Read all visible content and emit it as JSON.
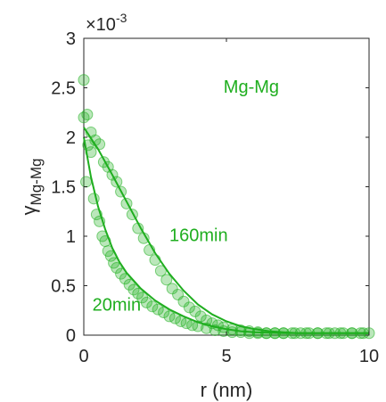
{
  "chart_data": {
    "type": "scatter",
    "title": "",
    "xlabel": "r (nm)",
    "ylabel_symbol": "γ",
    "ylabel_subscript": "Mg-Mg",
    "exponent_label": "×10",
    "exponent_power": "-3",
    "xlim": [
      0,
      10
    ],
    "ylim": [
      0,
      3
    ],
    "x_ticks": [
      0,
      5,
      10
    ],
    "x_tick_labels": [
      "0",
      "5",
      "10"
    ],
    "y_ticks": [
      0,
      0.5,
      1,
      1.5,
      2,
      2.5,
      3
    ],
    "y_tick_labels": [
      "0",
      "0.5",
      "1",
      "1.5",
      "2",
      "2.5",
      "3"
    ],
    "y_unit_scale": 0.001,
    "grid": false,
    "legend": "none",
    "color": "#1fae1f",
    "annotations": [
      {
        "text": "Mg-Mg",
        "x": 4.9,
        "y": 2.45
      },
      {
        "text": "160min",
        "x": 3.0,
        "y": 0.95
      },
      {
        "text": "20min",
        "x": 0.3,
        "y": 0.25
      }
    ],
    "series": [
      {
        "values_x": [
          0.0,
          0.12,
          0.25,
          0.4,
          0.55,
          0.7,
          0.85,
          1.0,
          1.15,
          1.3,
          1.5,
          1.7,
          1.9,
          2.1,
          2.3,
          2.5,
          2.7,
          2.9,
          3.1,
          3.3,
          3.5,
          3.7,
          3.9,
          4.1,
          4.3,
          4.5,
          4.7,
          4.9,
          5.2,
          5.5,
          5.8,
          6.1,
          6.4,
          6.7,
          7.0,
          7.3,
          7.6,
          7.9,
          8.2,
          8.5,
          8.8,
          9.1,
          9.4,
          9.7,
          10.0
        ],
        "values_y": [
          2.2,
          2.23,
          2.05,
          1.97,
          1.93,
          1.75,
          1.7,
          1.62,
          1.55,
          1.45,
          1.33,
          1.22,
          1.08,
          0.98,
          0.86,
          0.76,
          0.65,
          0.56,
          0.47,
          0.41,
          0.34,
          0.28,
          0.24,
          0.19,
          0.15,
          0.12,
          0.1,
          0.08,
          0.06,
          0.05,
          0.04,
          0.03,
          0.02,
          0.02,
          0.02,
          0.02,
          0.02,
          0.02,
          0.02,
          0.02,
          0.02,
          0.02,
          0.02,
          0.02,
          0.02
        ],
        "fit_x": [
          0,
          0.5,
          1,
          1.5,
          2,
          2.5,
          3,
          3.5,
          4,
          4.5,
          5,
          5.5,
          6,
          6.5,
          7,
          7.5,
          8,
          8.5,
          9,
          9.5,
          10
        ],
        "fit_y": [
          2.1,
          1.88,
          1.62,
          1.35,
          1.08,
          0.83,
          0.62,
          0.45,
          0.31,
          0.21,
          0.14,
          0.09,
          0.06,
          0.04,
          0.03,
          0.02,
          0.02,
          0.02,
          0.02,
          0.02,
          0.02
        ]
      },
      {
        "values_x": [
          0.0,
          0.08,
          0.15,
          0.25,
          0.35,
          0.45,
          0.55,
          0.65,
          0.75,
          0.85,
          0.95,
          1.05,
          1.15,
          1.3,
          1.45,
          1.6,
          1.75,
          1.9,
          2.05,
          2.2,
          2.4,
          2.6,
          2.8,
          3.0,
          3.2,
          3.4,
          3.6,
          3.8,
          4.0,
          4.3,
          4.6,
          4.9,
          5.2,
          5.5,
          5.8,
          6.1,
          6.4,
          6.7,
          7.0,
          7.4,
          7.8,
          8.2,
          8.6,
          9.0,
          9.4,
          9.8
        ],
        "values_y": [
          2.58,
          1.55,
          1.92,
          1.85,
          1.38,
          1.22,
          1.15,
          1.0,
          0.95,
          0.85,
          0.8,
          0.73,
          0.68,
          0.62,
          0.57,
          0.51,
          0.46,
          0.42,
          0.38,
          0.33,
          0.29,
          0.26,
          0.23,
          0.19,
          0.17,
          0.14,
          0.12,
          0.1,
          0.09,
          0.07,
          0.05,
          0.04,
          0.03,
          0.03,
          0.02,
          0.02,
          0.02,
          0.02,
          0.02,
          0.02,
          0.02,
          0.02,
          0.02,
          0.02,
          0.02,
          0.02
        ],
        "fit_x": [
          0,
          0.25,
          0.5,
          0.75,
          1,
          1.25,
          1.5,
          2,
          2.5,
          3,
          3.5,
          4,
          4.5,
          5,
          5.5,
          6,
          7,
          8,
          9,
          10
        ],
        "fit_y": [
          2.0,
          1.6,
          1.3,
          1.07,
          0.88,
          0.74,
          0.63,
          0.47,
          0.35,
          0.26,
          0.19,
          0.13,
          0.09,
          0.06,
          0.04,
          0.03,
          0.02,
          0.02,
          0.02,
          0.02
        ]
      }
    ]
  }
}
